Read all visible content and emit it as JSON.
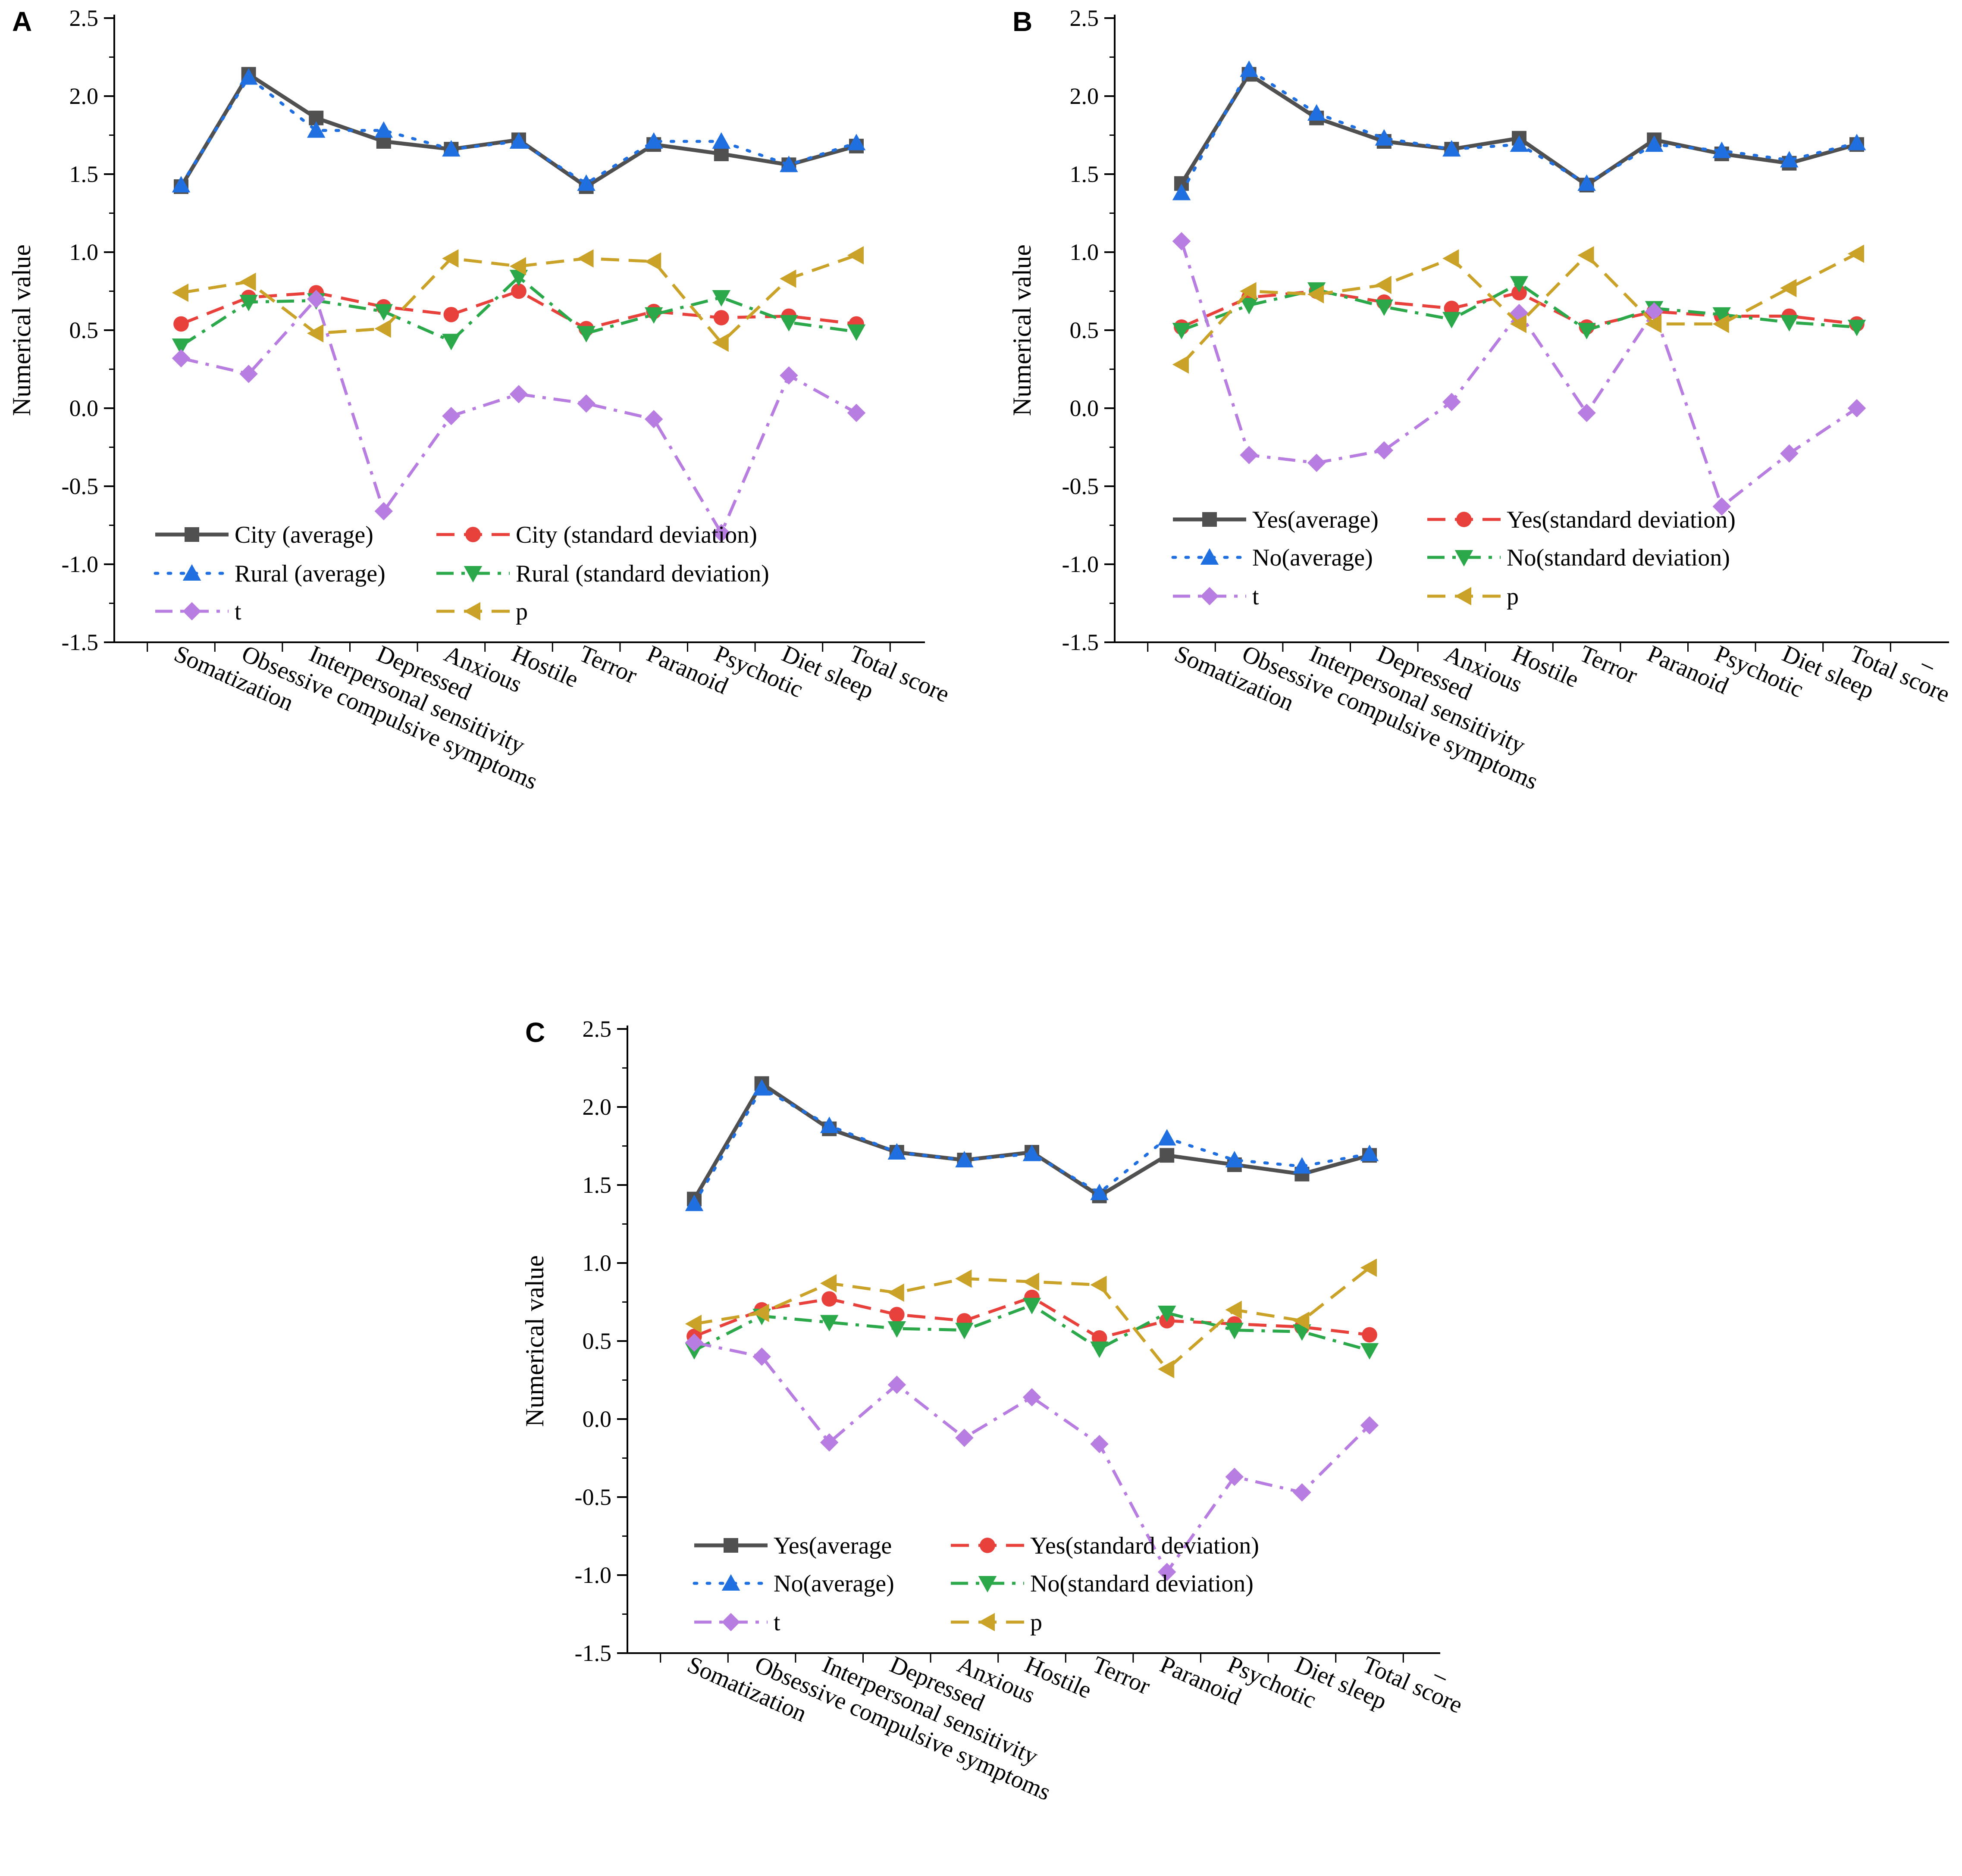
{
  "chart_data": [
    {
      "panel_label": "A",
      "type": "line",
      "ylabel": "Numerical value",
      "ylim": [
        -1.5,
        2.5
      ],
      "yticks": [
        "2.5",
        "2.0",
        "1.5",
        "1.0",
        "0.5",
        "0.0",
        "-0.5",
        "-1.0",
        "-1.5"
      ],
      "categories": [
        "Somatization",
        "Obsessive compulsive symptoms",
        "Interpersonal sensitivity",
        "Depressed",
        "Anxious",
        "Hostile",
        "Terror",
        "Paranoid",
        "Psychotic",
        "Diet sleep",
        "Total score"
      ],
      "series": [
        {
          "name": "City (average)",
          "color": "#505050",
          "marker": "square",
          "dash": "solid",
          "values": [
            1.42,
            2.14,
            1.86,
            1.71,
            1.66,
            1.72,
            1.42,
            1.69,
            1.63,
            1.56,
            1.68
          ]
        },
        {
          "name": "City (standard deviation)",
          "color": "#e8403a",
          "marker": "circle",
          "dash": "dash",
          "values": [
            0.54,
            0.71,
            0.74,
            0.65,
            0.6,
            0.75,
            0.51,
            0.62,
            0.58,
            0.59,
            0.54
          ]
        },
        {
          "name": "Rural (average)",
          "color": "#1f6fe0",
          "marker": "triangle-up",
          "dash": "dot",
          "values": [
            1.43,
            2.12,
            1.78,
            1.78,
            1.66,
            1.71,
            1.44,
            1.71,
            1.71,
            1.56,
            1.7
          ]
        },
        {
          "name": "Rural (standard deviation)",
          "color": "#2aa84a",
          "marker": "triangle-down",
          "dash": "dashdot",
          "values": [
            0.4,
            0.68,
            0.69,
            0.62,
            0.43,
            0.84,
            0.48,
            0.6,
            0.71,
            0.55,
            0.49
          ]
        },
        {
          "name": "t",
          "color": "#b77de0",
          "marker": "diamond",
          "dash": "dashdot",
          "values": [
            0.32,
            0.22,
            0.7,
            -0.66,
            -0.05,
            0.09,
            0.03,
            -0.07,
            -0.8,
            0.21,
            -0.03
          ]
        },
        {
          "name": "p",
          "color": "#c9a227",
          "marker": "triangle-left",
          "dash": "dash",
          "values": [
            0.74,
            0.81,
            0.48,
            0.51,
            0.96,
            0.91,
            0.96,
            0.94,
            0.42,
            0.83,
            0.98
          ]
        }
      ]
    },
    {
      "panel_label": "B",
      "type": "line",
      "ylabel": "Numerical value",
      "ylim": [
        -1.5,
        2.5
      ],
      "yticks": [
        "2.5",
        "2.0",
        "1.5",
        "1.0",
        "0.5",
        "0.0",
        "-0.5",
        "-1.0",
        "-1.5"
      ],
      "categories": [
        "Somatization",
        "Obsessive compulsive symptoms",
        "Interpersonal sensitivity",
        "Depressed",
        "Anxious",
        "Hostile",
        "Terror",
        "Paranoid",
        "Psychotic",
        "Diet sleep",
        "Total score"
      ],
      "series": [
        {
          "name": "Yes(average)",
          "color": "#505050",
          "marker": "square",
          "dash": "solid",
          "values": [
            1.44,
            2.14,
            1.86,
            1.71,
            1.66,
            1.73,
            1.43,
            1.72,
            1.63,
            1.57,
            1.69
          ]
        },
        {
          "name": "Yes(standard deviation)",
          "color": "#e8403a",
          "marker": "circle",
          "dash": "dash",
          "values": [
            0.52,
            0.71,
            0.75,
            0.68,
            0.64,
            0.74,
            0.52,
            0.62,
            0.59,
            0.59,
            0.54
          ]
        },
        {
          "name": "No(average)",
          "color": "#1f6fe0",
          "marker": "triangle-up",
          "dash": "dot",
          "values": [
            1.38,
            2.17,
            1.89,
            1.73,
            1.66,
            1.69,
            1.44,
            1.69,
            1.65,
            1.59,
            1.7
          ]
        },
        {
          "name": "No(standard deviation)",
          "color": "#2aa84a",
          "marker": "triangle-down",
          "dash": "dashdot",
          "values": [
            0.5,
            0.66,
            0.76,
            0.65,
            0.57,
            0.8,
            0.5,
            0.64,
            0.6,
            0.55,
            0.52
          ]
        },
        {
          "name": "t",
          "color": "#b77de0",
          "marker": "diamond",
          "dash": "dashdot",
          "values": [
            1.07,
            -0.3,
            -0.35,
            -0.27,
            0.04,
            0.61,
            -0.03,
            0.62,
            -0.63,
            -0.29,
            0.0
          ]
        },
        {
          "name": "p",
          "color": "#c9a227",
          "marker": "triangle-left",
          "dash": "dash",
          "values": [
            0.28,
            0.75,
            0.73,
            0.79,
            0.96,
            0.54,
            0.98,
            0.54,
            0.54,
            0.77,
            0.99
          ]
        }
      ]
    },
    {
      "panel_label": "C",
      "type": "line",
      "ylabel": "Numerical value",
      "ylim": [
        -1.5,
        2.5
      ],
      "yticks": [
        "2.5",
        "2.0",
        "1.5",
        "1.0",
        "0.5",
        "0.0",
        "-0.5",
        "-1.0",
        "-1.5"
      ],
      "categories": [
        "Somatization",
        "Obsessive compulsive symptoms",
        "Interpersonal sensitivity",
        "Depressed",
        "Anxious",
        "Hostile",
        "Terror",
        "Paranoid",
        "Psychotic",
        "Diet sleep",
        "Total score"
      ],
      "series": [
        {
          "name": "Yes(average",
          "color": "#505050",
          "marker": "square",
          "dash": "solid",
          "values": [
            1.41,
            2.15,
            1.86,
            1.71,
            1.66,
            1.71,
            1.43,
            1.69,
            1.63,
            1.57,
            1.69
          ]
        },
        {
          "name": "Yes(standard deviation)",
          "color": "#e8403a",
          "marker": "circle",
          "dash": "dash",
          "values": [
            0.53,
            0.7,
            0.77,
            0.67,
            0.63,
            0.78,
            0.52,
            0.63,
            0.61,
            0.59,
            0.54
          ]
        },
        {
          "name": "No(average)",
          "color": "#1f6fe0",
          "marker": "triangle-up",
          "dash": "dot",
          "values": [
            1.38,
            2.12,
            1.88,
            1.71,
            1.66,
            1.7,
            1.45,
            1.8,
            1.66,
            1.62,
            1.7
          ]
        },
        {
          "name": "No(standard deviation)",
          "color": "#2aa84a",
          "marker": "triangle-down",
          "dash": "dashdot",
          "values": [
            0.44,
            0.66,
            0.62,
            0.58,
            0.57,
            0.73,
            0.45,
            0.68,
            0.57,
            0.56,
            0.44
          ]
        },
        {
          "name": "t",
          "color": "#b77de0",
          "marker": "diamond",
          "dash": "dashdot",
          "values": [
            0.49,
            0.4,
            -0.15,
            0.22,
            -0.12,
            0.14,
            -0.16,
            -0.98,
            -0.37,
            -0.47,
            -0.04
          ]
        },
        {
          "name": "p",
          "color": "#c9a227",
          "marker": "triangle-left",
          "dash": "dash",
          "values": [
            0.61,
            0.68,
            0.87,
            0.81,
            0.9,
            0.88,
            0.86,
            0.32,
            0.7,
            0.63,
            0.97
          ]
        }
      ]
    }
  ]
}
